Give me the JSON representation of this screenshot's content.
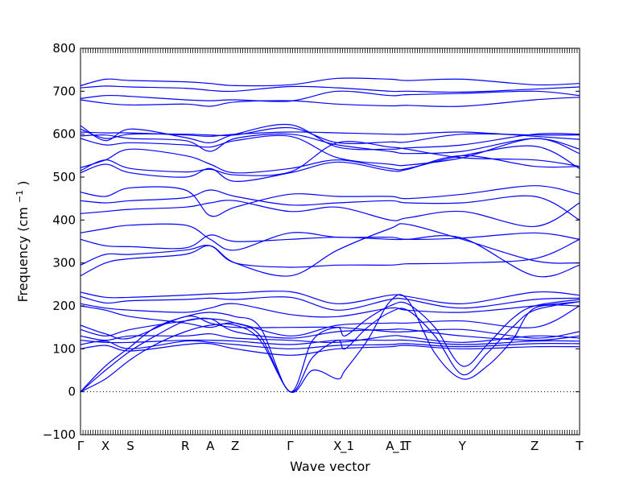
{
  "chart_data": {
    "type": "line",
    "title": "",
    "xlabel": "Wave vector",
    "ylabel": "Frequency (cm",
    "ylabel_sup": "−1",
    "ylabel_close": ")",
    "ylim": [
      -100,
      800
    ],
    "yticks": [
      -100,
      0,
      100,
      200,
      300,
      400,
      500,
      600,
      700,
      800
    ],
    "xlim": [
      0,
      20
    ],
    "xticks": [
      {
        "label": "Γ",
        "x": 0
      },
      {
        "label": "X",
        "x": 1
      },
      {
        "label": "S",
        "x": 2
      },
      {
        "label": "R",
        "x": 4.2
      },
      {
        "label": "A",
        "x": 5.2
      },
      {
        "label": "Z",
        "x": 6.2
      },
      {
        "label": "Γ",
        "x": 8.4
      },
      {
        "label": "X",
        "x": 10.3
      },
      {
        "label": "_1",
        "x": 10.55
      },
      {
        "label": "A",
        "x": 12.4
      },
      {
        "label": "_1",
        "x": 12.65
      },
      {
        "label": "T",
        "x": 13.1
      },
      {
        "label": "Y",
        "x": 15.3
      },
      {
        "label": "Z",
        "x": 18.2
      },
      {
        "label": "T",
        "x": 20
      }
    ],
    "zero_line": {
      "y": 0,
      "style": "dotted"
    },
    "line_color": "#0000ff",
    "grid": false,
    "series": [
      {
        "x": [
          0,
          1,
          2,
          4.2,
          5.2,
          6.2,
          8.4,
          10.3,
          12.4,
          13.1,
          15.3,
          18.2,
          20
        ],
        "values": [
          713,
          728,
          725,
          722,
          718,
          713,
          715,
          730,
          728,
          725,
          728,
          715,
          718
        ]
      },
      {
        "x": [
          0,
          1,
          2,
          4.2,
          5.2,
          6.2,
          8.4,
          10.3,
          12.4,
          13.1,
          15.3,
          18.2,
          20
        ],
        "values": [
          708,
          712,
          710,
          707,
          702,
          700,
          711,
          708,
          700,
          700,
          698,
          705,
          710
        ]
      },
      {
        "x": [
          0,
          1,
          2,
          4.2,
          5.2,
          6.2,
          8.4,
          10.3,
          12.4,
          13.1,
          15.3,
          18.2,
          20
        ],
        "values": [
          683,
          690,
          688,
          680,
          678,
          680,
          677,
          700,
          690,
          692,
          695,
          700,
          690
        ]
      },
      {
        "x": [
          0,
          1,
          2,
          4.2,
          5.2,
          6.2,
          8.4,
          10.3,
          12.4,
          13.1,
          15.3,
          18.2,
          20
        ],
        "values": [
          680,
          672,
          668,
          670,
          665,
          675,
          678,
          670,
          666,
          667,
          665,
          680,
          686
        ]
      },
      {
        "x": [
          0,
          1,
          2,
          4.2,
          5.2,
          6.2,
          8.4,
          10.3,
          12.4,
          13.1,
          15.3,
          18.2,
          20
        ],
        "values": [
          620,
          585,
          612,
          592,
          580,
          600,
          622,
          570,
          565,
          568,
          575,
          600,
          600
        ]
      },
      {
        "x": [
          0,
          1,
          2,
          4.2,
          5.2,
          6.2,
          8.4,
          10.3,
          12.4,
          13.1,
          15.3,
          18.2,
          20
        ],
        "values": [
          612,
          590,
          600,
          600,
          598,
          598,
          615,
          580,
          582,
          582,
          600,
          598,
          598
        ]
      },
      {
        "x": [
          0,
          1,
          2,
          4.2,
          5.2,
          6.2,
          8.4,
          10.3,
          12.4,
          13.1,
          15.3,
          18.2,
          20
        ],
        "values": [
          605,
          603,
          603,
          598,
          595,
          600,
          605,
          603,
          600,
          600,
          605,
          595,
          588
        ]
      },
      {
        "x": [
          0,
          1,
          2,
          4.2,
          5.2,
          6.2,
          8.4,
          10.3,
          12.4,
          13.1,
          15.3,
          18.2,
          20
        ],
        "values": [
          596,
          598,
          590,
          585,
          560,
          590,
          600,
          575,
          560,
          555,
          560,
          590,
          565
        ]
      },
      {
        "x": [
          0,
          1,
          2,
          4.2,
          5.2,
          6.2,
          8.4,
          10.3,
          12.4,
          13.1,
          15.3,
          18.2,
          20
        ],
        "values": [
          590,
          575,
          580,
          575,
          570,
          585,
          595,
          545,
          530,
          528,
          545,
          590,
          555
        ]
      },
      {
        "x": [
          0,
          1,
          2,
          4.2,
          5.2,
          6.2,
          8.4,
          10.3,
          12.4,
          13.1,
          15.3,
          18.2,
          20
        ],
        "values": [
          522,
          540,
          565,
          550,
          530,
          510,
          520,
          540,
          520,
          520,
          550,
          572,
          520
        ]
      },
      {
        "x": [
          0,
          1,
          2,
          4.2,
          5.2,
          6.2,
          8.4,
          10.3,
          12.4,
          13.1,
          15.3,
          18.2,
          20
        ],
        "values": [
          515,
          540,
          520,
          512,
          518,
          505,
          512,
          580,
          570,
          565,
          545,
          540,
          525
        ]
      },
      {
        "x": [
          0,
          1,
          2,
          4.2,
          5.2,
          6.2,
          8.4,
          10.3,
          12.4,
          13.1,
          15.3,
          18.2,
          20
        ],
        "values": [
          510,
          530,
          510,
          500,
          520,
          490,
          510,
          535,
          515,
          518,
          550,
          525,
          525
        ]
      },
      {
        "x": [
          0,
          1,
          2,
          4.2,
          5.2,
          6.2,
          8.4,
          10.3,
          12.4,
          13.1,
          15.3,
          18.2,
          20
        ],
        "values": [
          465,
          455,
          475,
          470,
          410,
          430,
          460,
          455,
          455,
          450,
          460,
          480,
          460
        ]
      },
      {
        "x": [
          0,
          1,
          2,
          4.2,
          5.2,
          6.2,
          8.4,
          10.3,
          12.4,
          13.1,
          15.3,
          18.2,
          20
        ],
        "values": [
          445,
          440,
          445,
          452,
          470,
          455,
          435,
          440,
          445,
          440,
          440,
          455,
          400
        ]
      },
      {
        "x": [
          0,
          1,
          2,
          4.2,
          5.2,
          6.2,
          8.4,
          10.3,
          12.4,
          13.1,
          15.3,
          18.2,
          20
        ],
        "values": [
          415,
          420,
          425,
          430,
          440,
          445,
          420,
          430,
          400,
          405,
          420,
          385,
          440
        ]
      },
      {
        "x": [
          0,
          1,
          2,
          4.2,
          5.2,
          6.2,
          8.4,
          10.3,
          12.4,
          13.1,
          15.3,
          18.2,
          20
        ],
        "values": [
          370,
          380,
          388,
          388,
          355,
          330,
          370,
          360,
          360,
          355,
          358,
          370,
          355
        ]
      },
      {
        "x": [
          0,
          1,
          2,
          4.2,
          5.2,
          6.2,
          8.4,
          10.3,
          12.4,
          13.1,
          15.3,
          18.2,
          20
        ],
        "values": [
          355,
          340,
          338,
          335,
          365,
          350,
          355,
          360,
          355,
          355,
          358,
          270,
          295
        ]
      },
      {
        "x": [
          0,
          1,
          2,
          4.2,
          5.2,
          6.2,
          8.4,
          10.3,
          12.4,
          13.1,
          15.3,
          18.2,
          20
        ],
        "values": [
          295,
          320,
          320,
          330,
          340,
          300,
          290,
          295,
          295,
          298,
          300,
          310,
          355
        ]
      },
      {
        "x": [
          0,
          1,
          2,
          4.2,
          5.2,
          6.2,
          8.4,
          10.3,
          12.4,
          13.1,
          15.3,
          18.2,
          20
        ],
        "values": [
          270,
          300,
          310,
          320,
          340,
          300,
          270,
          330,
          380,
          390,
          355,
          305,
          300
        ]
      },
      {
        "x": [
          0,
          1,
          2,
          4.2,
          5.2,
          6.2,
          8.4,
          10.3,
          12.4,
          13.1,
          15.3,
          18.2,
          20
        ],
        "values": [
          232,
          220,
          220,
          225,
          228,
          230,
          233,
          205,
          225,
          222,
          205,
          232,
          225
        ]
      },
      {
        "x": [
          0,
          1,
          2,
          4.2,
          5.2,
          6.2,
          8.4,
          10.3,
          12.4,
          13.1,
          15.3,
          18.2,
          20
        ],
        "values": [
          222,
          207,
          212,
          215,
          218,
          215,
          220,
          190,
          215,
          215,
          195,
          215,
          218
        ]
      },
      {
        "x": [
          0,
          1,
          2,
          4.2,
          5.2,
          6.2,
          8.4,
          10.3,
          12.4,
          13.1,
          15.3,
          18.2,
          20
        ],
        "values": [
          205,
          195,
          190,
          185,
          195,
          205,
          180,
          175,
          195,
          190,
          185,
          200,
          210
        ]
      },
      {
        "x": [
          0,
          1,
          2,
          4.2,
          5.2,
          6.2,
          8.4,
          10.3,
          12.4,
          13.1,
          15.3,
          18.2,
          20
        ],
        "values": [
          200,
          190,
          175,
          160,
          150,
          160,
          130,
          155,
          160,
          160,
          165,
          150,
          200
        ]
      },
      {
        "x": [
          0,
          1,
          2,
          4.2,
          5.2,
          6.2,
          8.4,
          10.3,
          12.4,
          13.1,
          15.3,
          18.2,
          20
        ],
        "values": [
          155,
          135,
          125,
          175,
          160,
          150,
          150,
          150,
          140,
          140,
          145,
          125,
          140
        ]
      },
      {
        "x": [
          0,
          1,
          2,
          4.2,
          5.2,
          6.2,
          8.4,
          10.3,
          12.4,
          13.1,
          15.3,
          18.2,
          20
        ],
        "values": [
          145,
          130,
          145,
          165,
          170,
          140,
          125,
          140,
          145,
          145,
          130,
          120,
          130
        ]
      },
      {
        "x": [
          0,
          1,
          2,
          4.2,
          5.2,
          6.2,
          8.4,
          10.3,
          12.4,
          13.1,
          15.3,
          18.2,
          20
        ],
        "values": [
          130,
          120,
          130,
          130,
          135,
          125,
          120,
          115,
          130,
          128,
          115,
          130,
          125
        ]
      },
      {
        "x": [
          0,
          1,
          2,
          4.2,
          5.2,
          6.2,
          8.4,
          10.3,
          12.4,
          13.1,
          15.3,
          18.2,
          20
        ],
        "values": [
          120,
          115,
          115,
          120,
          120,
          118,
          110,
          120,
          120,
          120,
          110,
          118,
          118
        ]
      },
      {
        "x": [
          0,
          1,
          2,
          4.2,
          5.2,
          6.2,
          8.4,
          10.3,
          12.4,
          13.1,
          15.3,
          18.2,
          20
        ],
        "values": [
          110,
          118,
          100,
          118,
          115,
          110,
          100,
          108,
          110,
          112,
          105,
          112,
          112
        ]
      },
      {
        "x": [
          0,
          1,
          2,
          4.2,
          5.2,
          6.2,
          8.4,
          10.3,
          12.4,
          13.1,
          15.3,
          18.2,
          20
        ],
        "values": [
          100,
          108,
          95,
          110,
          112,
          100,
          85,
          100,
          105,
          108,
          100,
          105,
          105
        ]
      },
      {
        "x": [
          0,
          1,
          2,
          3,
          4.2,
          5.2,
          6.2,
          7.2,
          8.4,
          9.3,
          10.3,
          10.6,
          11.5,
          12.4,
          13.1,
          14.2,
          15.3,
          16.3,
          17.3,
          18.2,
          20
        ],
        "values": [
          0,
          60,
          105,
          150,
          175,
          185,
          175,
          150,
          0,
          120,
          150,
          130,
          170,
          200,
          205,
          150,
          60,
          110,
          170,
          200,
          215
        ]
      },
      {
        "x": [
          0,
          1,
          2,
          3,
          4.2,
          5.2,
          6.2,
          7.2,
          8.4,
          9.3,
          10.3,
          10.6,
          11.5,
          12.4,
          13.1,
          14.2,
          15.3,
          16.3,
          17.3,
          18.2,
          20
        ],
        "values": [
          0,
          50,
          95,
          130,
          165,
          170,
          160,
          130,
          0,
          80,
          120,
          100,
          150,
          185,
          190,
          130,
          40,
          90,
          150,
          190,
          210
        ]
      },
      {
        "x": [
          0,
          1,
          2,
          3,
          4.2,
          5.2,
          6.2,
          7.2,
          8.4,
          9.3,
          10.3,
          10.6,
          11.5,
          12.4,
          13.1,
          14.2,
          15.3,
          16.3,
          17.3,
          18.2,
          20
        ],
        "values": [
          0,
          30,
          75,
          110,
          140,
          155,
          155,
          120,
          0,
          50,
          30,
          50,
          120,
          210,
          215,
          90,
          30,
          60,
          120,
          195,
          200
        ]
      }
    ]
  }
}
